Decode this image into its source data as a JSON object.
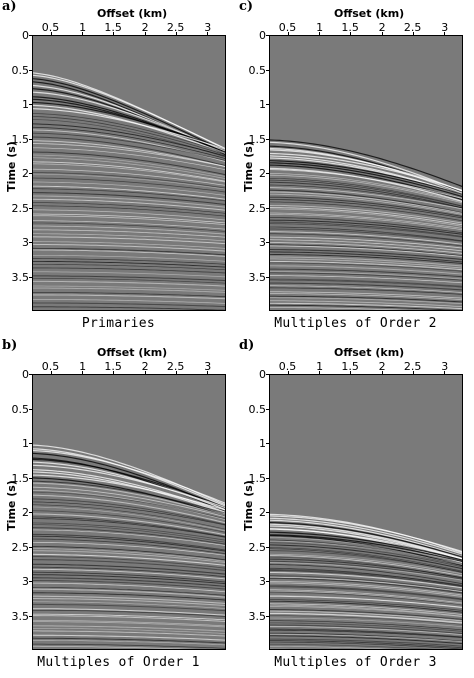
{
  "figure": {
    "panels": [
      {
        "id": "a",
        "letter": "a)",
        "title": "Primaries",
        "xlabel": "Offset (km)",
        "ylabel": "Time (s)",
        "xticks": [
          "0.5",
          "1",
          "1.5",
          "2",
          "2.5",
          "3"
        ],
        "yticks": [
          "0",
          "0.5",
          "1",
          "1.5",
          "2",
          "2.5",
          "3",
          "3.5"
        ],
        "event_start_time": 0.5
      },
      {
        "id": "c",
        "letter": "c)",
        "title": "Multiples of Order 2",
        "xlabel": "Offset (km)",
        "ylabel": "Time (s)",
        "xticks": [
          "0.5",
          "1",
          "1.5",
          "2",
          "2.5",
          "3"
        ],
        "yticks": [
          "0",
          "0.5",
          "1",
          "1.5",
          "2",
          "2.5",
          "3",
          "3.5"
        ],
        "event_start_time": 1.5
      },
      {
        "id": "b",
        "letter": "b)",
        "title": "Multiples of Order 1",
        "xlabel": "Offset (km)",
        "ylabel": "Time (s)",
        "xticks": [
          "0.5",
          "1",
          "1.5",
          "2",
          "2.5",
          "3"
        ],
        "yticks": [
          "0",
          "0.5",
          "1",
          "1.5",
          "2",
          "2.5",
          "3",
          "3.5"
        ],
        "event_start_time": 1.0
      },
      {
        "id": "d",
        "letter": "d)",
        "title": "Multiples of Order 3",
        "xlabel": "Offset (km)",
        "ylabel": "Time (s)",
        "xticks": [
          "0.5",
          "1",
          "1.5",
          "2",
          "2.5",
          "3"
        ],
        "yticks": [
          "0",
          "0.5",
          "1",
          "1.5",
          "2",
          "2.5",
          "3",
          "3.5"
        ],
        "event_start_time": 2.0
      }
    ],
    "axis_ranges": {
      "offset_km": [
        0.2,
        3.3
      ],
      "time_s": [
        0,
        4
      ]
    },
    "colors": {
      "background": "#7a7a7a",
      "positive": "#ffffff",
      "negative": "#000000"
    }
  }
}
